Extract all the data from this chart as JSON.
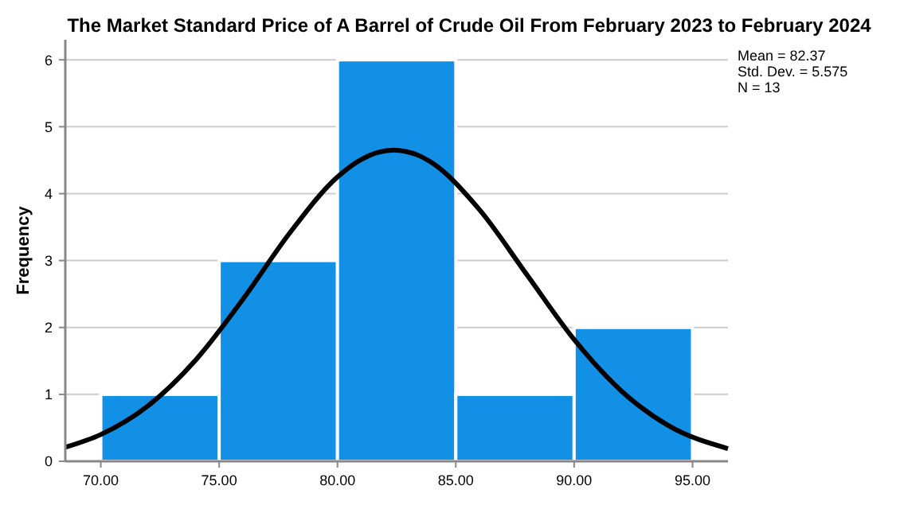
{
  "chart_data": {
    "type": "histogram",
    "title": "The Market Standard Price of A Barrel of Crude Oil From February 2023 to February 2024",
    "ylabel": "Frequency",
    "bins": [
      70,
      75,
      80,
      85,
      90,
      95
    ],
    "values": [
      1,
      3,
      6,
      1,
      2
    ],
    "color": "#1190e6",
    "series": [
      {
        "type": "line",
        "color": "#000000",
        "x": [
          68.5,
          70,
          72,
          74,
          76,
          78,
          80,
          81,
          82.37,
          83.5,
          84,
          86,
          88,
          90,
          92,
          94,
          96.5
        ],
        "values": [
          0.21,
          0.4,
          0.83,
          1.51,
          2.42,
          3.42,
          4.25,
          4.51,
          4.65,
          4.56,
          4.46,
          3.76,
          2.79,
          1.82,
          1.05,
          0.53,
          0.19
        ]
      }
    ],
    "xlim": [
      68.5,
      96.5
    ],
    "xticks": [
      {
        "value": 70,
        "label": "70.00"
      },
      {
        "value": 75,
        "label": "75.00"
      },
      {
        "value": 80,
        "label": "80.00"
      },
      {
        "value": 85,
        "label": "85.00"
      },
      {
        "value": 90,
        "label": "90.00"
      },
      {
        "value": 95,
        "label": "95.00"
      }
    ],
    "ylim": [
      0,
      6.3
    ],
    "yticks": [
      0,
      1,
      2,
      3,
      4,
      5,
      6
    ],
    "grid": "y",
    "annotations": [
      "Mean = 82.37",
      "Std. Dev. = 5.575",
      "N = 13"
    ]
  }
}
